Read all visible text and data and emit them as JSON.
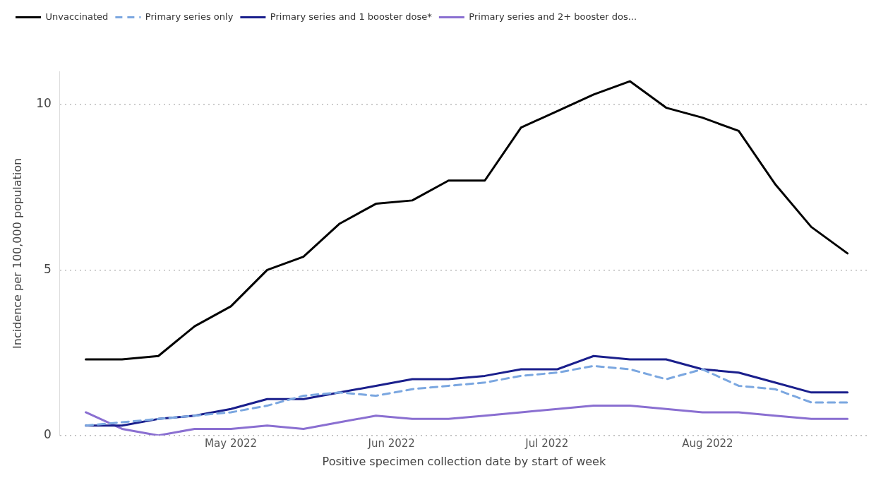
{
  "chart_data": {
    "type": "line",
    "xlabel": "Positive specimen collection date by start of week",
    "ylabel": "Incidence per 100,000 population",
    "x": [
      "2022-04-03",
      "2022-04-10",
      "2022-04-17",
      "2022-04-24",
      "2022-05-01",
      "2022-05-08",
      "2022-05-15",
      "2022-05-22",
      "2022-05-29",
      "2022-06-05",
      "2022-06-12",
      "2022-06-19",
      "2022-06-26",
      "2022-07-03",
      "2022-07-10",
      "2022-07-17",
      "2022-07-24",
      "2022-07-31",
      "2022-08-07",
      "2022-08-14",
      "2022-08-21",
      "2022-08-28"
    ],
    "series": [
      {
        "name": "Unvaccinated",
        "color": "#000000",
        "line_style": "solid",
        "values": [
          2.3,
          2.3,
          2.4,
          3.3,
          3.9,
          5.0,
          5.4,
          6.4,
          7.0,
          7.1,
          7.7,
          7.7,
          9.3,
          9.8,
          10.3,
          10.7,
          9.9,
          9.6,
          9.2,
          7.6,
          6.3,
          5.5
        ]
      },
      {
        "name": "Primary series only",
        "color": "#7ba7e0",
        "line_style": "dashed",
        "values": [
          0.3,
          0.4,
          0.5,
          0.6,
          0.7,
          0.9,
          1.2,
          1.3,
          1.2,
          1.4,
          1.5,
          1.6,
          1.8,
          1.9,
          2.1,
          2.0,
          1.7,
          2.0,
          1.5,
          1.4,
          1.0,
          1.0
        ]
      },
      {
        "name": "Primary series and 1 booster dose*",
        "color": "#1a1f8c",
        "line_style": "solid",
        "values": [
          0.3,
          0.3,
          0.5,
          0.6,
          0.8,
          1.1,
          1.1,
          1.3,
          1.5,
          1.7,
          1.7,
          1.8,
          2.0,
          2.0,
          2.4,
          2.3,
          2.3,
          2.0,
          1.9,
          1.6,
          1.3,
          1.3
        ]
      },
      {
        "name": "Primary series and 2+ booster dos...",
        "color": "#8a6fd1",
        "line_style": "solid",
        "values": [
          0.7,
          0.2,
          0.0,
          0.2,
          0.2,
          0.3,
          0.2,
          0.4,
          0.6,
          0.5,
          0.5,
          0.6,
          0.7,
          0.8,
          0.9,
          0.9,
          0.8,
          0.7,
          0.7,
          0.6,
          0.5,
          0.5
        ]
      }
    ],
    "xlim": [
      "2022-03-29",
      "2022-09-01"
    ],
    "xticks": [
      {
        "value": "2022-05-01",
        "label": "May 2022"
      },
      {
        "value": "2022-06-01",
        "label": "Jun 2022"
      },
      {
        "value": "2022-07-01",
        "label": "Jul 2022"
      },
      {
        "value": "2022-08-01",
        "label": "Aug 2022"
      }
    ],
    "ylim": [
      0,
      11
    ],
    "yticks": [
      0,
      5,
      10
    ],
    "grid": "y",
    "legend": "top left",
    "marker": "none"
  }
}
